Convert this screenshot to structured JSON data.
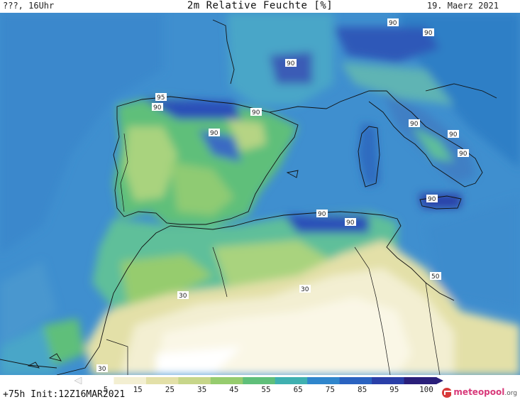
{
  "header": {
    "location": "???, 16Uhr",
    "title": "2m Relative Feuchte [%]",
    "date": "19. Maerz 2021"
  },
  "footer": {
    "init": "+75h Init:12Z16MAR2021",
    "logo_text": "meteopool",
    "logo_suffix": ".org"
  },
  "legend": {
    "ticks": [
      "5",
      "15",
      "25",
      "35",
      "45",
      "55",
      "65",
      "75",
      "85",
      "95",
      "100"
    ],
    "colors": [
      "#ffffff",
      "#f3efd2",
      "#e3e0a8",
      "#c7d68a",
      "#96cc6e",
      "#5fbf7a",
      "#3fb0b0",
      "#2f86cc",
      "#2a62c0",
      "#2a3fa8",
      "#2a1f7a"
    ]
  },
  "contour_labels": {
    "north_italy_1": "90",
    "north_italy_2": "90",
    "france_south": "90",
    "cantabria_95": "95",
    "cantabria_90": "90",
    "ebro": "90",
    "iberia_center": "90",
    "italy_west": "90",
    "italy_south": "90",
    "italy_heel": "90",
    "sicily": "90",
    "algeria_1": "90",
    "algeria_2": "90",
    "libya": "50",
    "morocco_south": "30",
    "algeria_south": "30",
    "sahara_west": "30"
  }
}
